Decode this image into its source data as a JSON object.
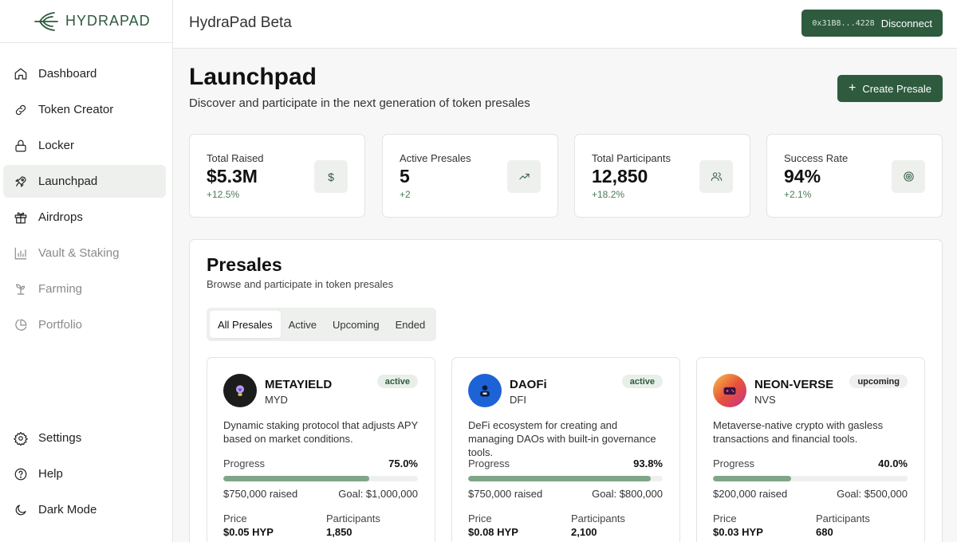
{
  "brand": {
    "name": "HYDRAPAD",
    "color": "#2e5a3e"
  },
  "sidebar": {
    "items": [
      {
        "label": "Dashboard",
        "icon": "home-icon",
        "state": "normal"
      },
      {
        "label": "Token Creator",
        "icon": "link-icon",
        "state": "normal"
      },
      {
        "label": "Locker",
        "icon": "lock-icon",
        "state": "normal"
      },
      {
        "label": "Launchpad",
        "icon": "rocket-icon",
        "state": "active"
      },
      {
        "label": "Airdrops",
        "icon": "gift-icon",
        "state": "normal"
      },
      {
        "label": "Vault & Staking",
        "icon": "bar-chart-icon",
        "state": "disabled"
      },
      {
        "label": "Farming",
        "icon": "sprout-icon",
        "state": "disabled"
      },
      {
        "label": "Portfolio",
        "icon": "pie-chart-icon",
        "state": "disabled"
      }
    ],
    "bottom": [
      {
        "label": "Settings",
        "icon": "gear-icon"
      },
      {
        "label": "Help",
        "icon": "help-circle-icon"
      },
      {
        "label": "Dark Mode",
        "icon": "moon-icon"
      }
    ]
  },
  "header": {
    "title": "HydraPad Beta",
    "wallet_address": "0x31B8...4228",
    "wallet_button": "Disconnect"
  },
  "page": {
    "title": "Launchpad",
    "subtitle": "Discover and participate in the next generation of token presales",
    "create_button": "Create Presale"
  },
  "stats": [
    {
      "label": "Total Raised",
      "value": "$5.3M",
      "change": "+12.5%",
      "icon": "dollar-icon"
    },
    {
      "label": "Active Presales",
      "value": "5",
      "change": "+2",
      "icon": "trending-up-icon"
    },
    {
      "label": "Total Participants",
      "value": "12,850",
      "change": "+18.2%",
      "icon": "users-icon"
    },
    {
      "label": "Success Rate",
      "value": "94%",
      "change": "+2.1%",
      "icon": "target-icon"
    }
  ],
  "presales": {
    "title": "Presales",
    "subtitle": "Browse and participate in token presales",
    "tabs": [
      "All Presales",
      "Active",
      "Upcoming",
      "Ended"
    ],
    "active_tab": "All Presales",
    "labels": {
      "progress": "Progress",
      "price": "Price",
      "participants": "Participants"
    },
    "cards": [
      {
        "name": "METAYIELD",
        "symbol": "MYD",
        "status": "active",
        "description": "Dynamic staking protocol that adjusts APY based on market conditions.",
        "progress": 75.0,
        "progress_text": "75.0%",
        "raised": "$750,000 raised",
        "goal": "Goal: $1,000,000",
        "price": "$0.05 HYP",
        "participants": "1,850",
        "logo_icon": "lightbulb-icon",
        "logo_color": "#1c1c1c"
      },
      {
        "name": "DAOFi",
        "symbol": "DFI",
        "status": "active",
        "description": "DeFi ecosystem for creating and managing DAOs with built-in governance tools.",
        "progress": 93.8,
        "progress_text": "93.8%",
        "raised": "$750,000 raised",
        "goal": "Goal: $800,000",
        "price": "$0.08 HYP",
        "participants": "2,100",
        "logo_icon": "person-icon",
        "logo_color": "#1e63d6"
      },
      {
        "name": "NEON-VERSE",
        "symbol": "NVS",
        "status": "upcoming",
        "description": "Metaverse-native crypto with gasless transactions and financial tools.",
        "progress": 40.0,
        "progress_text": "40.0%",
        "raised": "$200,000 raised",
        "goal": "Goal: $500,000",
        "price": "$0.03 HYP",
        "participants": "680",
        "logo_icon": "gamepad-icon",
        "logo_color": "#e8533a"
      }
    ]
  },
  "colors": {
    "accent": "#2e5a3e",
    "progress_fill": "#7fa688",
    "surface": "#eef0ee"
  }
}
